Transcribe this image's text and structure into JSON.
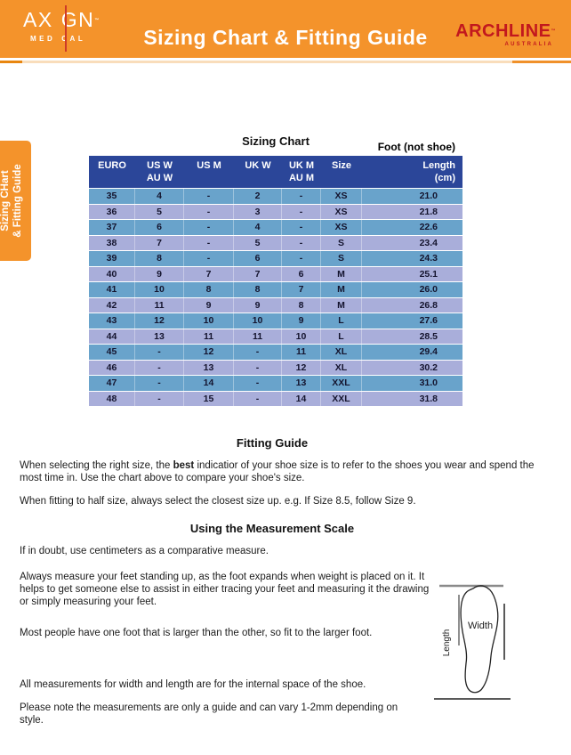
{
  "colors": {
    "brand_orange": "#F4932B",
    "brand_red": "#C2181E",
    "table_header_blue": "#2B4699",
    "row_steel_blue": "#69A3CB",
    "row_periwinkle": "#A9AEDA"
  },
  "header": {
    "title": "Sizing Chart & Fitting Guide",
    "axign_logo": {
      "word_left": "AX",
      "word_right": "GN",
      "tm": "™",
      "sub_left": "MED",
      "sub_right": "CAL"
    },
    "archline_logo": {
      "name": "ARCHLINE",
      "tm": "™",
      "country": "AUSTRALIA"
    }
  },
  "sidebar_tab": {
    "line1": "Sizing CHart",
    "line2": "& Fitting Guide"
  },
  "sizing_chart": {
    "heading": "Sizing Chart",
    "foot_label": "Foot (not shoe)",
    "columns": [
      {
        "l1": "EURO",
        "l2": ""
      },
      {
        "l1": "US W",
        "l2": "AU W"
      },
      {
        "l1": "US M",
        "l2": ""
      },
      {
        "l1": "UK W",
        "l2": ""
      },
      {
        "l1": "UK M",
        "l2": "AU M"
      },
      {
        "l1": "Size",
        "l2": ""
      },
      {
        "l1": "Length",
        "l2": "(cm)"
      }
    ],
    "rows": [
      [
        "35",
        "4",
        "-",
        "2",
        "-",
        "XS",
        "21.0"
      ],
      [
        "36",
        "5",
        "-",
        "3",
        "-",
        "XS",
        "21.8"
      ],
      [
        "37",
        "6",
        "-",
        "4",
        "-",
        "XS",
        "22.6"
      ],
      [
        "38",
        "7",
        "-",
        "5",
        "-",
        "S",
        "23.4"
      ],
      [
        "39",
        "8",
        "-",
        "6",
        "-",
        "S",
        "24.3"
      ],
      [
        "40",
        "9",
        "7",
        "7",
        "6",
        "M",
        "25.1"
      ],
      [
        "41",
        "10",
        "8",
        "8",
        "7",
        "M",
        "26.0"
      ],
      [
        "42",
        "11",
        "9",
        "9",
        "8",
        "M",
        "26.8"
      ],
      [
        "43",
        "12",
        "10",
        "10",
        "9",
        "L",
        "27.6"
      ],
      [
        "44",
        "13",
        "11",
        "11",
        "10",
        "L",
        "28.5"
      ],
      [
        "45",
        "-",
        "12",
        "-",
        "11",
        "XL",
        "29.4"
      ],
      [
        "46",
        "-",
        "13",
        "-",
        "12",
        "XL",
        "30.2"
      ],
      [
        "47",
        "-",
        "14",
        "-",
        "13",
        "XXL",
        "31.0"
      ],
      [
        "48",
        "-",
        "15",
        "-",
        "14",
        "XXL",
        "31.8"
      ]
    ]
  },
  "fitting_guide": {
    "heading": "Fitting Guide",
    "p1_before": "When selecting the right size, the ",
    "p1_bold": "best",
    "p1_after": " indicatior of your shoe size is to refer to the shoes you wear and spend the most time in. Use the chart above to compare your shoe's size.",
    "p2": "When fitting to half size, always select the closest size up. e.g. If Size 8.5, follow Size 9."
  },
  "measurement_scale": {
    "heading": "Using the Measurement Scale",
    "p1": "If in doubt, use centimeters as a comparative measure.",
    "p2": "Always measure your feet standing up, as the foot expands when weight is placed on it. It helps to get someone else to assist in either tracing your feet and measuring it the drawing or simply measuring your feet.",
    "p3": "Most people have one foot that is larger than the other, so fit to the larger foot.",
    "p4": "All measurements for width and length are for the internal space of the shoe.",
    "p5": "Please note the measurements are only a guide and can vary 1-2mm depending on style."
  },
  "foot_diagram": {
    "width_label": "Width",
    "length_label": "Length"
  }
}
